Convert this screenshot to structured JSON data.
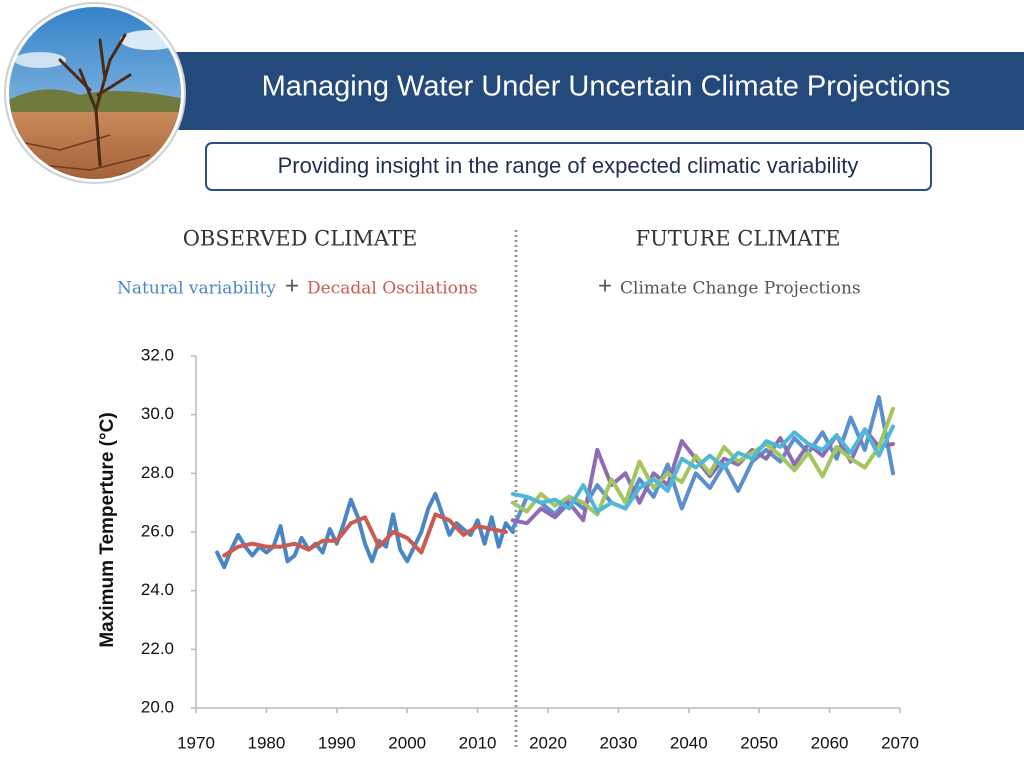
{
  "header": {
    "title": "Managing Water Under Uncertain Climate Projections",
    "subtitle": "Providing insight in the range of expected climatic variability"
  },
  "chart_data": {
    "type": "line",
    "sections": [
      "OBSERVED CLIMATE",
      "FUTURE CLIMATE"
    ],
    "joiner": "+",
    "projection_label": "Climate Change Projections",
    "ylabel": "Maximum Temperture (°C)",
    "xlim": [
      1970,
      2070
    ],
    "xticks": [
      1970,
      1980,
      1990,
      2000,
      2010,
      2020,
      2030,
      2040,
      2050,
      2060,
      2070
    ],
    "ylim": [
      20,
      32
    ],
    "yticks": [
      {
        "value": 20,
        "label": "20.0"
      },
      {
        "value": 22,
        "label": "22.0"
      },
      {
        "value": 24,
        "label": "24.0"
      },
      {
        "value": 26,
        "label": "26.0"
      },
      {
        "value": 28,
        "label": "28.0"
      },
      {
        "value": 30,
        "label": "30.0"
      },
      {
        "value": 32,
        "label": "32.0"
      }
    ],
    "series": [
      {
        "name": "Natural variability",
        "color": "#4a86c5",
        "x": [
          1973,
          1974,
          1975,
          1976,
          1977,
          1978,
          1979,
          1980,
          1981,
          1982,
          1983,
          1984,
          1985,
          1986,
          1987,
          1988,
          1989,
          1990,
          1991,
          1992,
          1993,
          1994,
          1995,
          1996,
          1997,
          1998,
          1999,
          2000,
          2001,
          2002,
          2003,
          2004,
          2005,
          2006,
          2007,
          2008,
          2009,
          2010,
          2011,
          2012,
          2013,
          2014,
          2015
        ],
        "values": [
          25.3,
          24.8,
          25.4,
          25.9,
          25.5,
          25.2,
          25.5,
          25.3,
          25.5,
          26.2,
          25.0,
          25.2,
          25.8,
          25.4,
          25.6,
          25.3,
          26.1,
          25.6,
          26.3,
          27.1,
          26.5,
          25.6,
          25.0,
          25.7,
          25.5,
          26.6,
          25.4,
          25.0,
          25.5,
          26.0,
          26.8,
          27.3,
          26.6,
          25.9,
          26.3,
          26.1,
          25.9,
          26.4,
          25.6,
          26.5,
          25.5,
          26.3,
          26.0
        ]
      },
      {
        "name": "Decadal Oscilations",
        "color": "#cc5a4e",
        "x": [
          1974,
          1976,
          1978,
          1980,
          1982,
          1984,
          1986,
          1988,
          1990,
          1992,
          1994,
          1996,
          1998,
          2000,
          2002,
          2004,
          2006,
          2008,
          2010,
          2012,
          2014
        ],
        "values": [
          25.2,
          25.5,
          25.6,
          25.5,
          25.5,
          25.6,
          25.4,
          25.7,
          25.7,
          26.3,
          26.5,
          25.5,
          26.0,
          25.8,
          25.3,
          26.6,
          26.4,
          25.9,
          26.2,
          26.1,
          26.0
        ]
      },
      {
        "color": "#5b8fce",
        "x": [
          2015,
          2017,
          2019,
          2021,
          2023,
          2025,
          2027,
          2029,
          2031,
          2033,
          2035,
          2037,
          2039,
          2041,
          2043,
          2045,
          2047,
          2049,
          2051,
          2053,
          2055,
          2057,
          2059,
          2061,
          2063,
          2065,
          2067,
          2069
        ],
        "values": [
          26.1,
          27.2,
          27.0,
          26.6,
          27.2,
          26.8,
          27.6,
          27.0,
          26.8,
          27.8,
          27.2,
          28.3,
          26.8,
          28.0,
          27.5,
          28.3,
          27.4,
          28.4,
          28.8,
          28.4,
          29.2,
          28.7,
          29.4,
          28.5,
          29.9,
          28.8,
          30.6,
          28.0
        ]
      },
      {
        "color": "#8e6bb3",
        "x": [
          2015,
          2017,
          2019,
          2021,
          2023,
          2025,
          2027,
          2029,
          2031,
          2033,
          2035,
          2037,
          2039,
          2041,
          2043,
          2045,
          2047,
          2049,
          2051,
          2053,
          2055,
          2057,
          2059,
          2061,
          2063,
          2065,
          2067,
          2069
        ],
        "values": [
          26.4,
          26.3,
          26.8,
          26.5,
          27.0,
          26.4,
          28.8,
          27.6,
          28.0,
          27.0,
          28.0,
          27.6,
          29.1,
          28.5,
          27.9,
          28.5,
          28.3,
          28.8,
          28.5,
          29.2,
          28.3,
          29.0,
          28.6,
          29.3,
          28.4,
          29.5,
          28.9,
          29.0
        ]
      },
      {
        "color": "#a3c75e",
        "x": [
          2015,
          2017,
          2019,
          2021,
          2023,
          2025,
          2027,
          2029,
          2031,
          2033,
          2035,
          2037,
          2039,
          2041,
          2043,
          2045,
          2047,
          2049,
          2051,
          2053,
          2055,
          2057,
          2059,
          2061,
          2063,
          2065,
          2067,
          2069
        ],
        "values": [
          27.0,
          26.7,
          27.3,
          26.9,
          27.2,
          27.0,
          26.6,
          27.8,
          27.0,
          28.4,
          27.5,
          28.0,
          27.7,
          28.6,
          28.0,
          28.9,
          28.4,
          28.7,
          29.0,
          28.6,
          28.1,
          28.7,
          27.9,
          28.9,
          28.5,
          28.2,
          28.9,
          30.2
        ]
      },
      {
        "color": "#4fb8d8",
        "x": [
          2015,
          2017,
          2019,
          2021,
          2023,
          2025,
          2027,
          2029,
          2031,
          2033,
          2035,
          2037,
          2039,
          2041,
          2043,
          2045,
          2047,
          2049,
          2051,
          2053,
          2055,
          2057,
          2059,
          2061,
          2063,
          2065,
          2067,
          2069
        ],
        "values": [
          27.3,
          27.2,
          27.0,
          27.1,
          26.8,
          27.6,
          26.7,
          27.0,
          26.8,
          27.5,
          27.8,
          27.4,
          28.5,
          28.2,
          28.6,
          28.2,
          28.7,
          28.5,
          29.1,
          28.9,
          29.4,
          29.0,
          28.8,
          29.3,
          28.7,
          29.5,
          28.6,
          29.6
        ]
      }
    ]
  }
}
